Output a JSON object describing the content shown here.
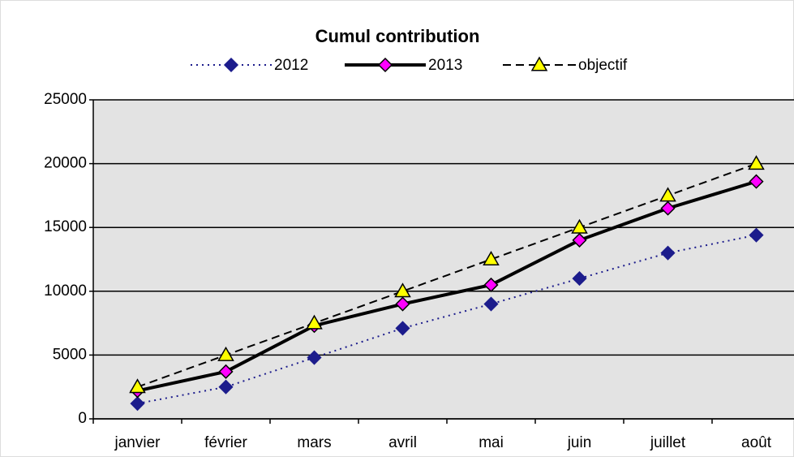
{
  "chart_data": {
    "type": "line",
    "title": "Cumul contribution",
    "categories": [
      "janvier",
      "février",
      "mars",
      "avril",
      "mai",
      "juin",
      "juillet",
      "août"
    ],
    "series": [
      {
        "name": "2012",
        "color": "#1c1c8c",
        "dash": "dotted",
        "marker": "diamond",
        "values": [
          1200,
          2500,
          4800,
          7100,
          9000,
          11000,
          13000,
          14400
        ]
      },
      {
        "name": "2013",
        "color": "#ff00ff",
        "dash": "solid",
        "marker": "diamond",
        "values": [
          2200,
          3700,
          7300,
          9000,
          10500,
          14000,
          16500,
          18600
        ]
      },
      {
        "name": "objectif",
        "color": "#ffff00",
        "dash": "dashed",
        "marker": "triangle",
        "values": [
          2500,
          5000,
          7500,
          10000,
          12500,
          15000,
          17500,
          20000
        ]
      }
    ],
    "ylim": [
      0,
      25000
    ],
    "yticks": [
      0,
      5000,
      10000,
      15000,
      20000,
      25000
    ],
    "grid": true
  }
}
